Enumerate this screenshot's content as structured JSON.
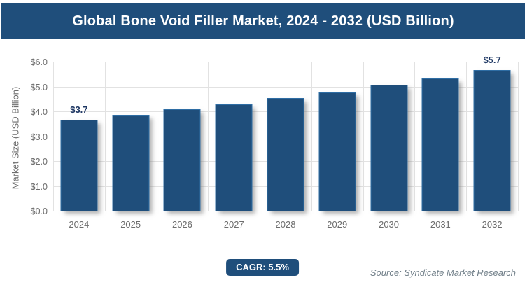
{
  "header": {
    "title": "Global Bone Void Filler Market, 2024 - 2032 (USD Billion)"
  },
  "chart_data": {
    "type": "bar",
    "title": "Global Bone Void Filler Market, 2024 - 2032 (USD Billion)",
    "categories": [
      "2024",
      "2025",
      "2026",
      "2027",
      "2028",
      "2029",
      "2030",
      "2031",
      "2032"
    ],
    "values": [
      3.7,
      3.9,
      4.1,
      4.3,
      4.55,
      4.8,
      5.1,
      5.35,
      5.7
    ],
    "data_labels": [
      "$3.7",
      "",
      "",
      "",
      "",
      "",
      "",
      "",
      "$5.7"
    ],
    "xlabel": "",
    "ylabel": "Market Size (USD Billion)",
    "ylim": [
      0,
      6
    ],
    "y_ticks": [
      "$0.0",
      "$1.0",
      "$2.0",
      "$3.0",
      "$4.0",
      "$5.0",
      "$6.0"
    ],
    "grid": true,
    "legend": false
  },
  "footer": {
    "cagr_badge": "CAGR: 5.5%",
    "source": "Source: Syndicate Market Research"
  },
  "colors": {
    "banner_bg": "#1f4e7b",
    "banner_text": "#ffffff",
    "bar_color": "#1f4e7b",
    "bar_border": "#2e6da4",
    "gridline": "#e2e2e2",
    "axis_text": "#6d6d6d",
    "data_label": "#1f3864",
    "badge_bg": "#1f4e7b",
    "badge_text": "#ffffff",
    "source_text": "#72808a"
  }
}
